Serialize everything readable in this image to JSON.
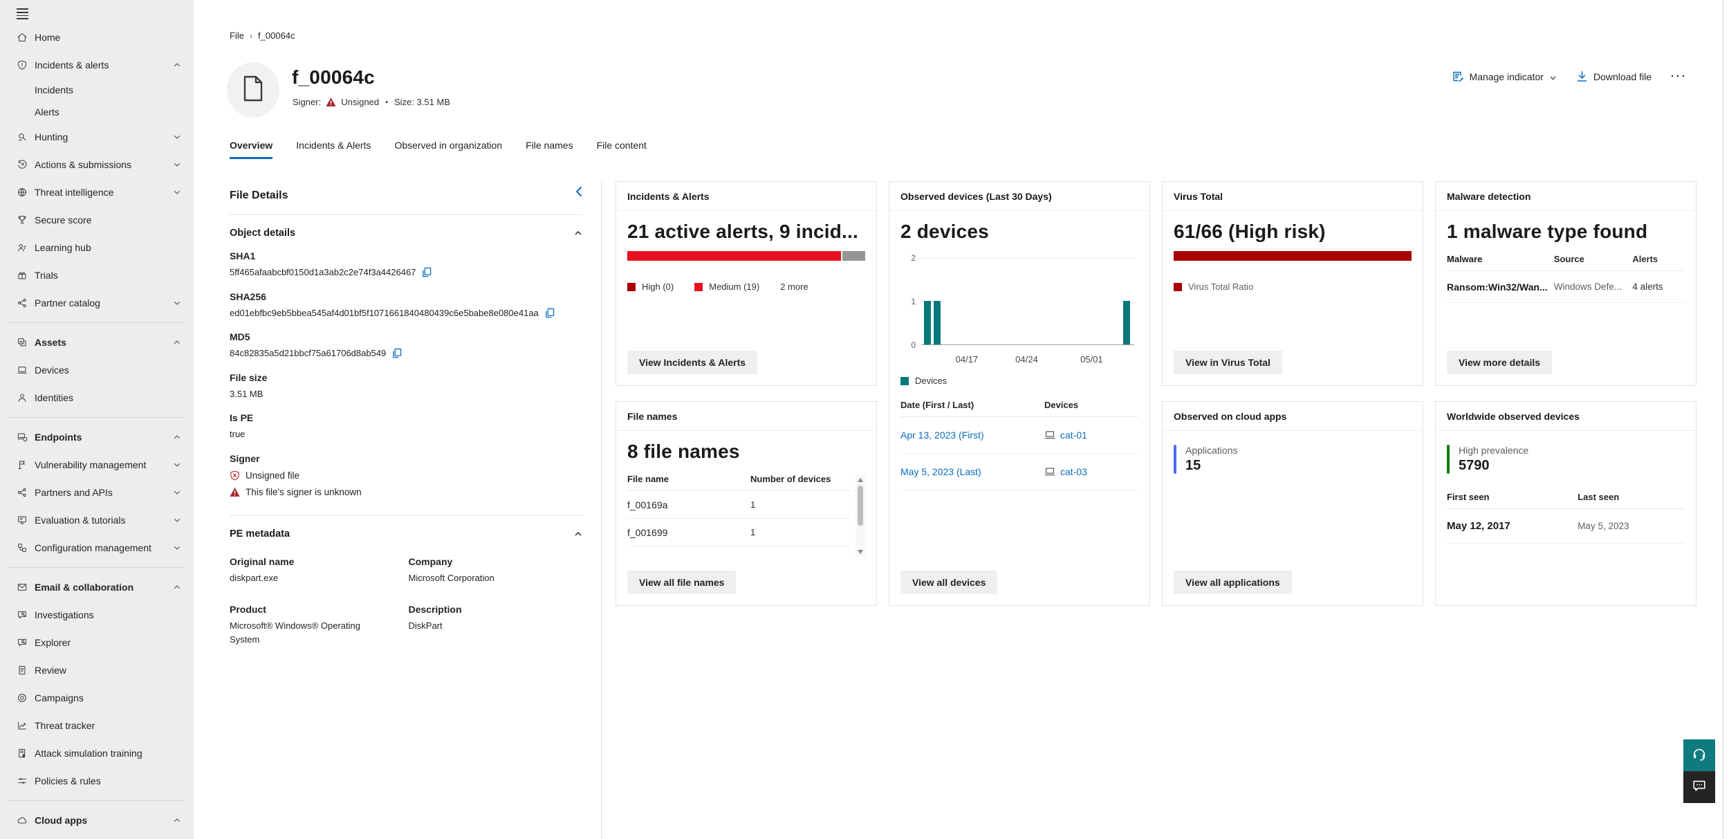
{
  "breadcrumb": {
    "root": "File",
    "current": "f_00064c"
  },
  "header": {
    "title": "f_00064c",
    "signer_label": "Signer:",
    "signer_value": "Unsigned",
    "separator": "•",
    "size_text": "Size: 3.51 MB",
    "actions": {
      "manage": "Manage indicator",
      "download": "Download file",
      "more": "···"
    }
  },
  "tabs": {
    "items": [
      "Overview",
      "Incidents & Alerts",
      "Observed in organization",
      "File names",
      "File content"
    ],
    "selected": "Overview"
  },
  "sidebar": {
    "items": [
      {
        "label": "Home",
        "icon": "home"
      },
      {
        "label": "Incidents & alerts",
        "icon": "shield-alert",
        "chevron": "up"
      },
      {
        "label": "Incidents",
        "sub": true
      },
      {
        "label": "Alerts",
        "sub": true
      },
      {
        "label": "Hunting",
        "icon": "hunting",
        "chevron": "down"
      },
      {
        "label": "Actions & submissions",
        "icon": "history",
        "chevron": "down"
      },
      {
        "label": "Threat intelligence",
        "icon": "intel",
        "chevron": "down"
      },
      {
        "label": "Secure score",
        "icon": "trophy"
      },
      {
        "label": "Learning hub",
        "icon": "learning"
      },
      {
        "label": "Trials",
        "icon": "gift"
      },
      {
        "label": "Partner catalog",
        "icon": "share",
        "chevron": "down"
      },
      {
        "label": "Assets",
        "icon": "assets",
        "chevron": "up",
        "bold": true,
        "divider_before": true
      },
      {
        "label": "Devices",
        "icon": "laptop"
      },
      {
        "label": "Identities",
        "icon": "person"
      },
      {
        "label": "Endpoints",
        "icon": "endpoint",
        "chevron": "up",
        "bold": true,
        "divider_before": true
      },
      {
        "label": "Vulnerability management",
        "icon": "vuln",
        "chevron": "down"
      },
      {
        "label": "Partners and APIs",
        "icon": "share",
        "chevron": "down"
      },
      {
        "label": "Evaluation & tutorials",
        "icon": "eval",
        "chevron": "down"
      },
      {
        "label": "Configuration management",
        "icon": "config",
        "chevron": "down"
      },
      {
        "label": "Email & collaboration",
        "icon": "mail",
        "chevron": "up",
        "bold": true,
        "divider_before": true
      },
      {
        "label": "Investigations",
        "icon": "chat-search"
      },
      {
        "label": "Explorer",
        "icon": "chat-search"
      },
      {
        "label": "Review",
        "icon": "doc-list"
      },
      {
        "label": "Campaigns",
        "icon": "target"
      },
      {
        "label": "Threat tracker",
        "icon": "chart-line"
      },
      {
        "label": "Attack simulation training",
        "icon": "doc-person"
      },
      {
        "label": "Policies & rules",
        "icon": "sliders"
      },
      {
        "label": "Cloud apps",
        "icon": "cloud",
        "chevron": "up",
        "bold": true,
        "divider_before": true
      }
    ]
  },
  "file_details": {
    "title": "File Details",
    "object_details_heading": "Object details",
    "fields": [
      {
        "label": "SHA1",
        "value": "5ff465afaabcbf0150d1a3ab2c2e74f3a4426467",
        "copy": true
      },
      {
        "label": "SHA256",
        "value": "ed01ebfbc9eb5bbea545af4d01bf5f1071661840480439c6e5babe8e080e41aa",
        "copy": true
      },
      {
        "label": "MD5",
        "value": "84c82835a5d21bbcf75a61706d8ab549",
        "copy": true
      },
      {
        "label": "File size",
        "value": "3.51 MB"
      },
      {
        "label": "Is PE",
        "value": "true"
      }
    ],
    "signer": {
      "label": "Signer",
      "unsigned": "Unsigned file",
      "warning": "This file's signer is unknown"
    },
    "pe_metadata": {
      "heading": "PE metadata",
      "fields": [
        {
          "label": "Original name",
          "value": "diskpart.exe"
        },
        {
          "label": "Company",
          "value": "Microsoft Corporation"
        },
        {
          "label": "Product",
          "value": "Microsoft® Windows® Operating System"
        },
        {
          "label": "Description",
          "value": "DiskPart"
        }
      ]
    }
  },
  "cards": {
    "incidents": {
      "title": "Incidents & Alerts",
      "headline": "21 active alerts, 9 incid...",
      "bar": {
        "red_ratio": 19,
        "gray_ratio": 2,
        "red": "#e81123",
        "gray": "#979593"
      },
      "legend": [
        {
          "label": "High (0)",
          "color": "#a80000"
        },
        {
          "label": "Medium (19)",
          "color": "#e81123"
        }
      ],
      "more": "2 more",
      "button": "View Incidents & Alerts"
    },
    "file_names": {
      "title": "File names",
      "headline": "8 file names",
      "columns": [
        "File name",
        "Number of devices"
      ],
      "rows": [
        [
          "f_00169a",
          "1"
        ],
        [
          "f_001699",
          "1"
        ]
      ],
      "button": "View all file names"
    },
    "observed_devices": {
      "title": "Observed devices (Last 30 Days)",
      "headline": "2 devices",
      "legend": "Devices",
      "color": "#067a7a",
      "columns": [
        "Date (First / Last)",
        "Devices"
      ],
      "rows": [
        {
          "date": "Apr 13, 2023 (First)",
          "device": "cat-01"
        },
        {
          "date": "May 5, 2023 (Last)",
          "device": "cat-03"
        }
      ],
      "button": "View all devices"
    },
    "virus_total": {
      "title": "Virus Total",
      "headline": "61/66 (High risk)",
      "ratio": "61/66",
      "color": "#a80000",
      "legend": "Virus Total Ratio",
      "button": "View in Virus Total"
    },
    "malware": {
      "title": "Malware detection",
      "headline": "1 malware type found",
      "columns": [
        "Malware",
        "Source",
        "Alerts"
      ],
      "rows": [
        [
          "Ransom:Win32/Wan...",
          "Windows Defe...",
          "4 alerts"
        ]
      ],
      "button": "View more details"
    },
    "cloud_apps": {
      "title": "Observed on cloud apps",
      "metric_label": "Applications",
      "metric_value": "15",
      "accent": "#4f6bed",
      "button": "View all applications"
    },
    "worldwide": {
      "title": "Worldwide observed devices",
      "metric_label": "High prevalence",
      "metric_value": "5790",
      "accent": "#107c10",
      "columns": [
        "First seen",
        "Last seen"
      ],
      "rows": [
        [
          "May 12, 2017",
          "May 5, 2023"
        ]
      ]
    }
  },
  "chart_data": {
    "type": "bar",
    "title": "Observed devices (Last 30 Days)",
    "xlabel": "",
    "ylabel": "",
    "ylim": [
      0,
      2
    ],
    "yticks": [
      0,
      1,
      2
    ],
    "xticks": [
      "04/17",
      "04/24",
      "05/01"
    ],
    "grid": "top-line-only",
    "legend_position": "bottom",
    "series": [
      {
        "name": "Devices",
        "color": "#067a7a",
        "points": [
          {
            "x": "04/13",
            "y": 1
          },
          {
            "x": "04/14",
            "y": 1
          },
          {
            "x": "05/05",
            "y": 1
          }
        ]
      }
    ]
  }
}
